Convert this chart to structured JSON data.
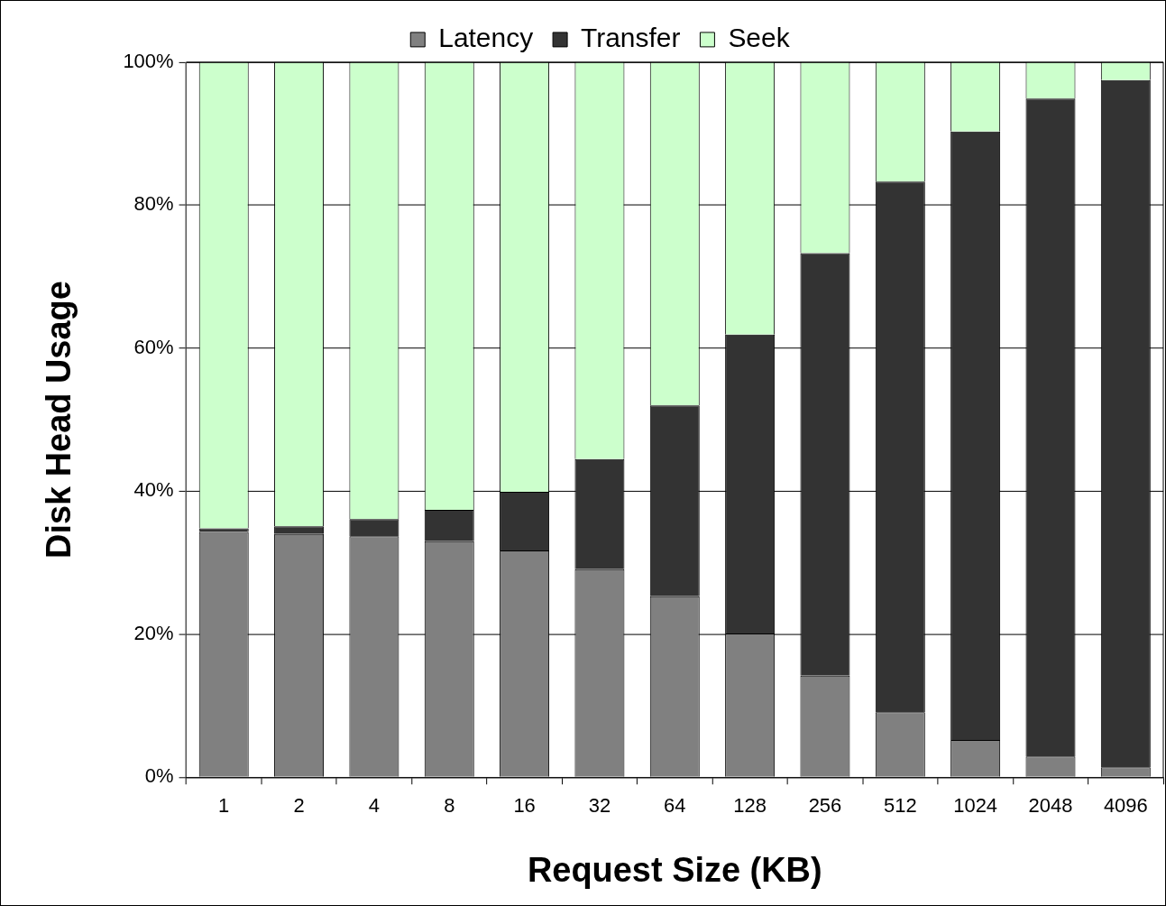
{
  "chart_data": {
    "type": "bar",
    "stacked": true,
    "xlabel": "Request Size (KB)",
    "ylabel": "Disk Head Usage",
    "categories": [
      "1",
      "2",
      "4",
      "8",
      "16",
      "32",
      "64",
      "128",
      "256",
      "512",
      "1024",
      "2048",
      "4096"
    ],
    "series": [
      {
        "name": "Latency",
        "color": "#808080",
        "values": [
          34.3,
          34.0,
          33.7,
          33.0,
          31.7,
          29.1,
          25.3,
          20.1,
          14.2,
          9.1,
          5.2,
          2.9,
          1.4
        ]
      },
      {
        "name": "Transfer",
        "color": "#333333",
        "values": [
          0.5,
          1.1,
          2.4,
          4.4,
          8.2,
          15.4,
          26.7,
          41.8,
          59.1,
          74.2,
          85.1,
          92.0,
          96.1
        ]
      },
      {
        "name": "Seek",
        "color": "#ccffcc",
        "values": [
          65.2,
          64.9,
          63.9,
          62.6,
          60.1,
          55.5,
          48.0,
          38.1,
          26.7,
          16.7,
          9.7,
          5.1,
          2.5
        ]
      }
    ],
    "ylim": [
      0,
      100
    ],
    "yticks": [
      {
        "value": 0,
        "label": "0%"
      },
      {
        "value": 20,
        "label": "20%"
      },
      {
        "value": 40,
        "label": "40%"
      },
      {
        "value": 60,
        "label": "60%"
      },
      {
        "value": 80,
        "label": "80%"
      },
      {
        "value": 100,
        "label": "100%"
      }
    ],
    "grid": "y",
    "legend": "top"
  }
}
